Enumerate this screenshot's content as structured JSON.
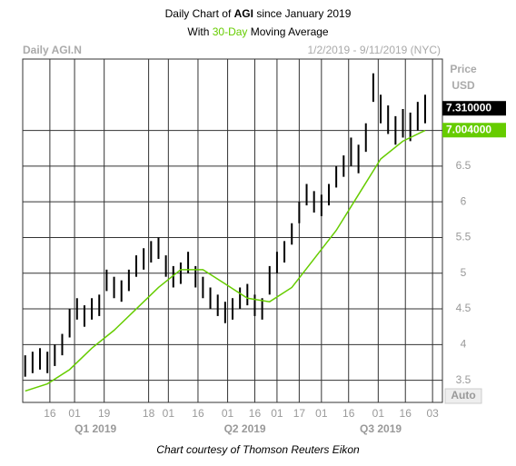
{
  "chart_data": {
    "type": "hilo",
    "title": [
      "Daily Chart of ",
      "AGI",
      " since January 2019"
    ],
    "subtitle": [
      "With ",
      "30-Day",
      " Moving Average"
    ],
    "header_left": "Daily AGI.N",
    "header_right": "1/2/2019 - 9/11/2019 (NYC)",
    "axis_label": [
      "Price",
      "USD"
    ],
    "scale_mode": "Auto",
    "footer": "Chart courtesy of Thomson Reuters Eikon",
    "color": "#000000",
    "x": [
      0,
      3,
      6,
      9,
      12,
      15,
      18,
      21,
      24,
      27,
      30,
      33,
      36,
      39,
      42,
      45,
      48,
      51,
      54,
      57,
      60,
      63,
      66,
      69,
      72,
      75,
      78,
      81,
      84,
      87,
      90,
      93,
      96,
      99,
      102,
      105,
      108,
      111,
      114,
      117,
      120,
      123,
      126,
      129,
      132,
      135,
      138,
      141,
      144,
      147,
      150,
      153,
      156,
      159,
      162
    ],
    "high": [
      3.85,
      3.9,
      3.95,
      3.9,
      4.0,
      4.15,
      4.5,
      4.65,
      4.55,
      4.65,
      4.7,
      5.05,
      4.95,
      4.9,
      5.05,
      5.25,
      5.35,
      5.45,
      5.5,
      5.25,
      5.1,
      5.15,
      5.3,
      5.1,
      4.95,
      4.8,
      4.7,
      4.6,
      4.65,
      4.8,
      4.85,
      4.7,
      4.65,
      5.1,
      5.3,
      5.45,
      5.7,
      6.0,
      6.25,
      6.15,
      6.1,
      6.25,
      6.5,
      6.65,
      6.9,
      6.8,
      7.1,
      7.8,
      7.5,
      7.35,
      7.2,
      7.3,
      7.25,
      7.4,
      7.5
    ],
    "low": [
      3.55,
      3.6,
      3.65,
      3.6,
      3.7,
      3.85,
      4.1,
      4.35,
      4.25,
      4.35,
      4.4,
      4.75,
      4.65,
      4.6,
      4.75,
      4.95,
      5.05,
      5.15,
      5.2,
      4.95,
      4.8,
      4.85,
      5.0,
      4.8,
      4.65,
      4.5,
      4.4,
      4.3,
      4.35,
      4.5,
      4.55,
      4.4,
      4.35,
      4.7,
      5.0,
      5.15,
      5.4,
      5.7,
      5.95,
      5.85,
      5.8,
      5.95,
      6.2,
      6.35,
      6.5,
      6.4,
      6.7,
      7.4,
      7.1,
      6.95,
      6.8,
      6.9,
      6.85,
      7.0,
      7.1
    ],
    "moving_average": {
      "name": "30-Day",
      "color": "#66cc00",
      "x": [
        0,
        9,
        18,
        27,
        36,
        45,
        54,
        63,
        72,
        81,
        90,
        99,
        108,
        117,
        126,
        135,
        144,
        153,
        162
      ],
      "values": [
        3.35,
        3.45,
        3.65,
        3.95,
        4.2,
        4.5,
        4.8,
        5.05,
        5.05,
        4.85,
        4.65,
        4.6,
        4.8,
        5.2,
        5.6,
        6.1,
        6.6,
        6.85,
        7.0
      ]
    },
    "price_boxes": [
      {
        "value": 7.31,
        "label": "7.310000",
        "color": "#000000"
      },
      {
        "value": 7.004,
        "label": "7.004000",
        "color": "#66cc00"
      }
    ],
    "xlim": [
      -1,
      169
    ],
    "ylim": [
      3.19,
      8.0
    ],
    "yticks": [
      3.5,
      4,
      4.5,
      5,
      5.5,
      6,
      6.5,
      7
    ],
    "xticks": [
      {
        "value": 10,
        "label": "16"
      },
      {
        "value": 20,
        "label": "01"
      },
      {
        "value": 32,
        "label": "19"
      },
      {
        "value": 50,
        "label": "18"
      },
      {
        "value": 58,
        "label": "01"
      },
      {
        "value": 70,
        "label": "16"
      },
      {
        "value": 82,
        "label": "01"
      },
      {
        "value": 93,
        "label": "16"
      },
      {
        "value": 102,
        "label": "01"
      },
      {
        "value": 111,
        "label": "17"
      },
      {
        "value": 120,
        "label": "01"
      },
      {
        "value": 131,
        "label": "16"
      },
      {
        "value": 143,
        "label": "01"
      },
      {
        "value": 154,
        "label": "16"
      },
      {
        "value": 165,
        "label": "03"
      }
    ],
    "quarters": [
      {
        "value": 28.5,
        "label": "Q1 2019"
      },
      {
        "value": 89,
        "label": "Q2 2019"
      },
      {
        "value": 144,
        "label": "Q3 2019"
      }
    ],
    "grid": true
  }
}
